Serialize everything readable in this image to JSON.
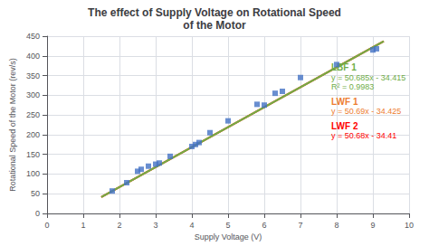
{
  "chart_data": {
    "type": "scatter",
    "title": "The effect of Supply Voltage on Rotational Speed\nof the Motor",
    "xlabel": "Supply Voltage (V)",
    "ylabel": "Rotational Speed of the Motor (rev/s)",
    "xlim": [
      0,
      10
    ],
    "ylim": [
      0,
      450
    ],
    "xticks": [
      0,
      1,
      2,
      3,
      4,
      5,
      6,
      7,
      8,
      9,
      10
    ],
    "yticks": [
      0,
      50,
      100,
      150,
      200,
      250,
      300,
      350,
      400,
      450
    ],
    "grid": true,
    "series": [
      {
        "type": "line",
        "name": "LWF 2",
        "color": "#ff0000",
        "x": [
          1.5,
          9.3
        ],
        "values": [
          41.61,
          436.914
        ],
        "annotations": [
          "y = 50.68x - 34.41"
        ]
      },
      {
        "type": "line",
        "name": "LWF 1",
        "color": "#ed7d31",
        "x": [
          1.5,
          9.3
        ],
        "values": [
          41.61,
          436.992
        ],
        "annotations": [
          "y = 50.69x - 34.425"
        ]
      },
      {
        "type": "line",
        "name": "LBF 1",
        "color": "#70ad47",
        "x": [
          1.5,
          9.3
        ],
        "values": [
          41.6125,
          436.9555
        ],
        "annotations": [
          "y = 50.685x - 34.415",
          "R² = 0.9983"
        ]
      },
      {
        "type": "scatter",
        "color": "#4472c4",
        "marker": "square",
        "x": [
          1.8,
          2.2,
          2.5,
          2.6,
          2.8,
          3.0,
          3.1,
          3.4,
          4.0,
          4.1,
          4.2,
          4.5,
          5.0,
          5.8,
          6.0,
          6.3,
          6.5,
          7.0,
          8.0,
          9.0,
          9.1
        ],
        "values": [
          57,
          78,
          107,
          112,
          120,
          125,
          128,
          145,
          170,
          175,
          180,
          205,
          235,
          277,
          275,
          305,
          310,
          345,
          378,
          415,
          418
        ]
      }
    ]
  }
}
